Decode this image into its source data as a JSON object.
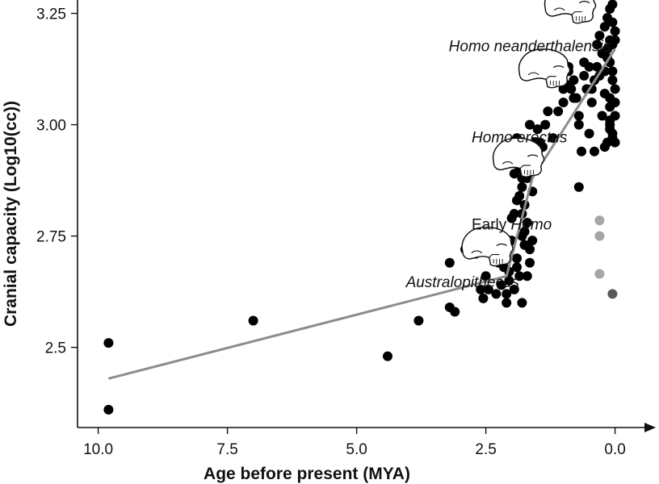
{
  "chart_data": {
    "type": "scatter",
    "title": "",
    "xlabel": "Age before present (MYA)",
    "ylabel": "Cranial capacity (Log10(cc))",
    "x_reversed": true,
    "xlim": [
      10.4,
      -0.6
    ],
    "ylim": [
      2.32,
      3.28
    ],
    "x_ticks": [
      {
        "value": 10.0,
        "label": "10.0"
      },
      {
        "value": 7.5,
        "label": "7.5"
      },
      {
        "value": 5.0,
        "label": "5.0"
      },
      {
        "value": 2.5,
        "label": "2.5"
      },
      {
        "value": 0.0,
        "label": "0.0"
      }
    ],
    "y_ticks": [
      {
        "value": 2.5,
        "label": "2.5"
      },
      {
        "value": 2.75,
        "label": "2.75"
      },
      {
        "value": 3.0,
        "label": "3.00"
      },
      {
        "value": 3.25,
        "label": "3.25"
      }
    ],
    "grid": false,
    "annotations": [
      {
        "name": "australopithecus",
        "parts": [
          {
            "text": "Australopithecus",
            "italic": true
          }
        ],
        "x": 2.95,
        "y": 2.635
      },
      {
        "name": "early-homo",
        "parts": [
          {
            "text": "Early ",
            "italic": false
          },
          {
            "text": "Homo",
            "italic": true
          }
        ],
        "x": 2.0,
        "y": 2.765
      },
      {
        "name": "homo-erectus",
        "parts": [
          {
            "text": "Homo erectus",
            "italic": true
          }
        ],
        "x": 1.85,
        "y": 2.96
      },
      {
        "name": "homo-neanderthalensis",
        "parts": [
          {
            "text": "Homo neanderthalensis",
            "italic": true
          }
        ],
        "x": 1.65,
        "y": 3.165
      }
    ],
    "skulls": [
      {
        "name": "australopithecus-skull-icon",
        "x": 2.45,
        "y": 2.725
      },
      {
        "name": "early-homo-skull-icon",
        "x": 1.85,
        "y": 2.925
      },
      {
        "name": "homo-erectus-skull-icon",
        "x": 1.35,
        "y": 3.125
      },
      {
        "name": "homo-neanderthalensis-skull-icon",
        "x": 0.85,
        "y": 3.27
      }
    ],
    "trend_line": {
      "color": "#8c8c8c",
      "x": [
        9.8,
        2.1,
        1.6,
        0.0
      ],
      "y": [
        2.43,
        2.66,
        2.88,
        3.17
      ]
    },
    "series": [
      {
        "color": "#000000",
        "x": [
          9.8,
          9.8,
          7.0,
          4.4,
          3.8,
          3.2,
          3.1,
          3.2,
          2.9,
          2.7,
          2.6,
          2.55,
          2.5,
          2.45,
          2.4,
          2.25,
          2.2,
          2.1,
          2.1,
          2.05,
          2.05,
          1.95,
          1.9,
          1.9,
          1.85,
          1.8,
          1.8,
          1.75,
          1.7,
          1.65,
          1.6,
          1.55,
          1.5,
          1.45,
          1.4,
          1.35,
          1.3,
          1.2,
          1.1,
          1.0,
          0.95,
          0.9,
          0.85,
          0.8,
          0.75,
          0.7,
          0.65,
          0.6,
          0.55,
          0.5,
          0.45,
          0.4,
          0.35,
          0.3,
          0.25,
          0.2,
          0.15,
          0.1,
          0.05,
          0.0,
          2.3,
          2.15,
          2.0,
          1.95,
          1.75,
          1.85,
          1.8,
          1.7,
          1.75,
          1.9,
          1.65,
          1.75,
          1.8,
          1.7,
          1.85,
          1.8,
          1.6,
          1.5,
          1.8,
          1.9,
          1.95,
          1.7,
          1.55,
          1.65,
          1.5,
          2.0,
          0.7,
          0.4,
          0.5,
          0.2,
          0.1,
          0.05,
          0.0,
          0.1,
          0.2,
          0.15,
          0.05,
          0.0,
          0.1,
          0.05,
          0.15,
          0.0,
          0.05,
          0.1,
          0.2,
          0.25,
          0.3,
          0.35,
          0.45,
          0.6,
          0.9,
          1.0,
          0.8,
          0.7,
          0.1,
          0.05,
          0.0,
          0.15,
          0.1,
          0.05,
          0.0,
          0.1
        ],
        "y": [
          2.51,
          2.36,
          2.56,
          2.48,
          2.56,
          2.59,
          2.58,
          2.69,
          2.72,
          2.71,
          2.63,
          2.61,
          2.66,
          2.63,
          2.75,
          2.69,
          2.64,
          2.62,
          2.6,
          2.65,
          2.67,
          2.63,
          2.68,
          2.7,
          2.66,
          2.6,
          2.75,
          2.73,
          2.78,
          2.72,
          2.85,
          2.9,
          2.93,
          2.96,
          2.95,
          3.0,
          3.03,
          2.97,
          3.03,
          3.05,
          3.09,
          3.12,
          3.08,
          3.1,
          3.06,
          2.86,
          2.94,
          3.14,
          3.08,
          3.13,
          3.05,
          3.1,
          3.18,
          3.2,
          3.16,
          3.22,
          3.24,
          3.26,
          3.27,
          3.21,
          2.62,
          2.68,
          2.79,
          2.8,
          2.76,
          2.84,
          2.88,
          2.88,
          2.82,
          2.83,
          2.69,
          2.73,
          2.86,
          2.66,
          2.9,
          2.8,
          2.74,
          2.99,
          2.92,
          2.97,
          2.89,
          2.94,
          2.96,
          3.0,
          2.92,
          2.74,
          3.0,
          2.94,
          2.98,
          2.95,
          3.0,
          3.1,
          3.02,
          3.06,
          3.12,
          3.15,
          3.18,
          3.08,
          3.04,
          2.98,
          2.96,
          3.05,
          3.12,
          3.14,
          3.07,
          3.02,
          3.11,
          3.13,
          3.08,
          3.11,
          3.13,
          3.08,
          3.06,
          3.02,
          3.19,
          3.23,
          3.19,
          3.17,
          2.99,
          2.97,
          2.96,
          3.01
        ]
      },
      {
        "color": "#a6a6a6",
        "x": [
          0.3,
          0.3,
          0.3
        ],
        "y": [
          2.785,
          2.75,
          2.665
        ]
      },
      {
        "color": "#595959",
        "x": [
          0.05
        ],
        "y": [
          2.62
        ]
      }
    ]
  }
}
